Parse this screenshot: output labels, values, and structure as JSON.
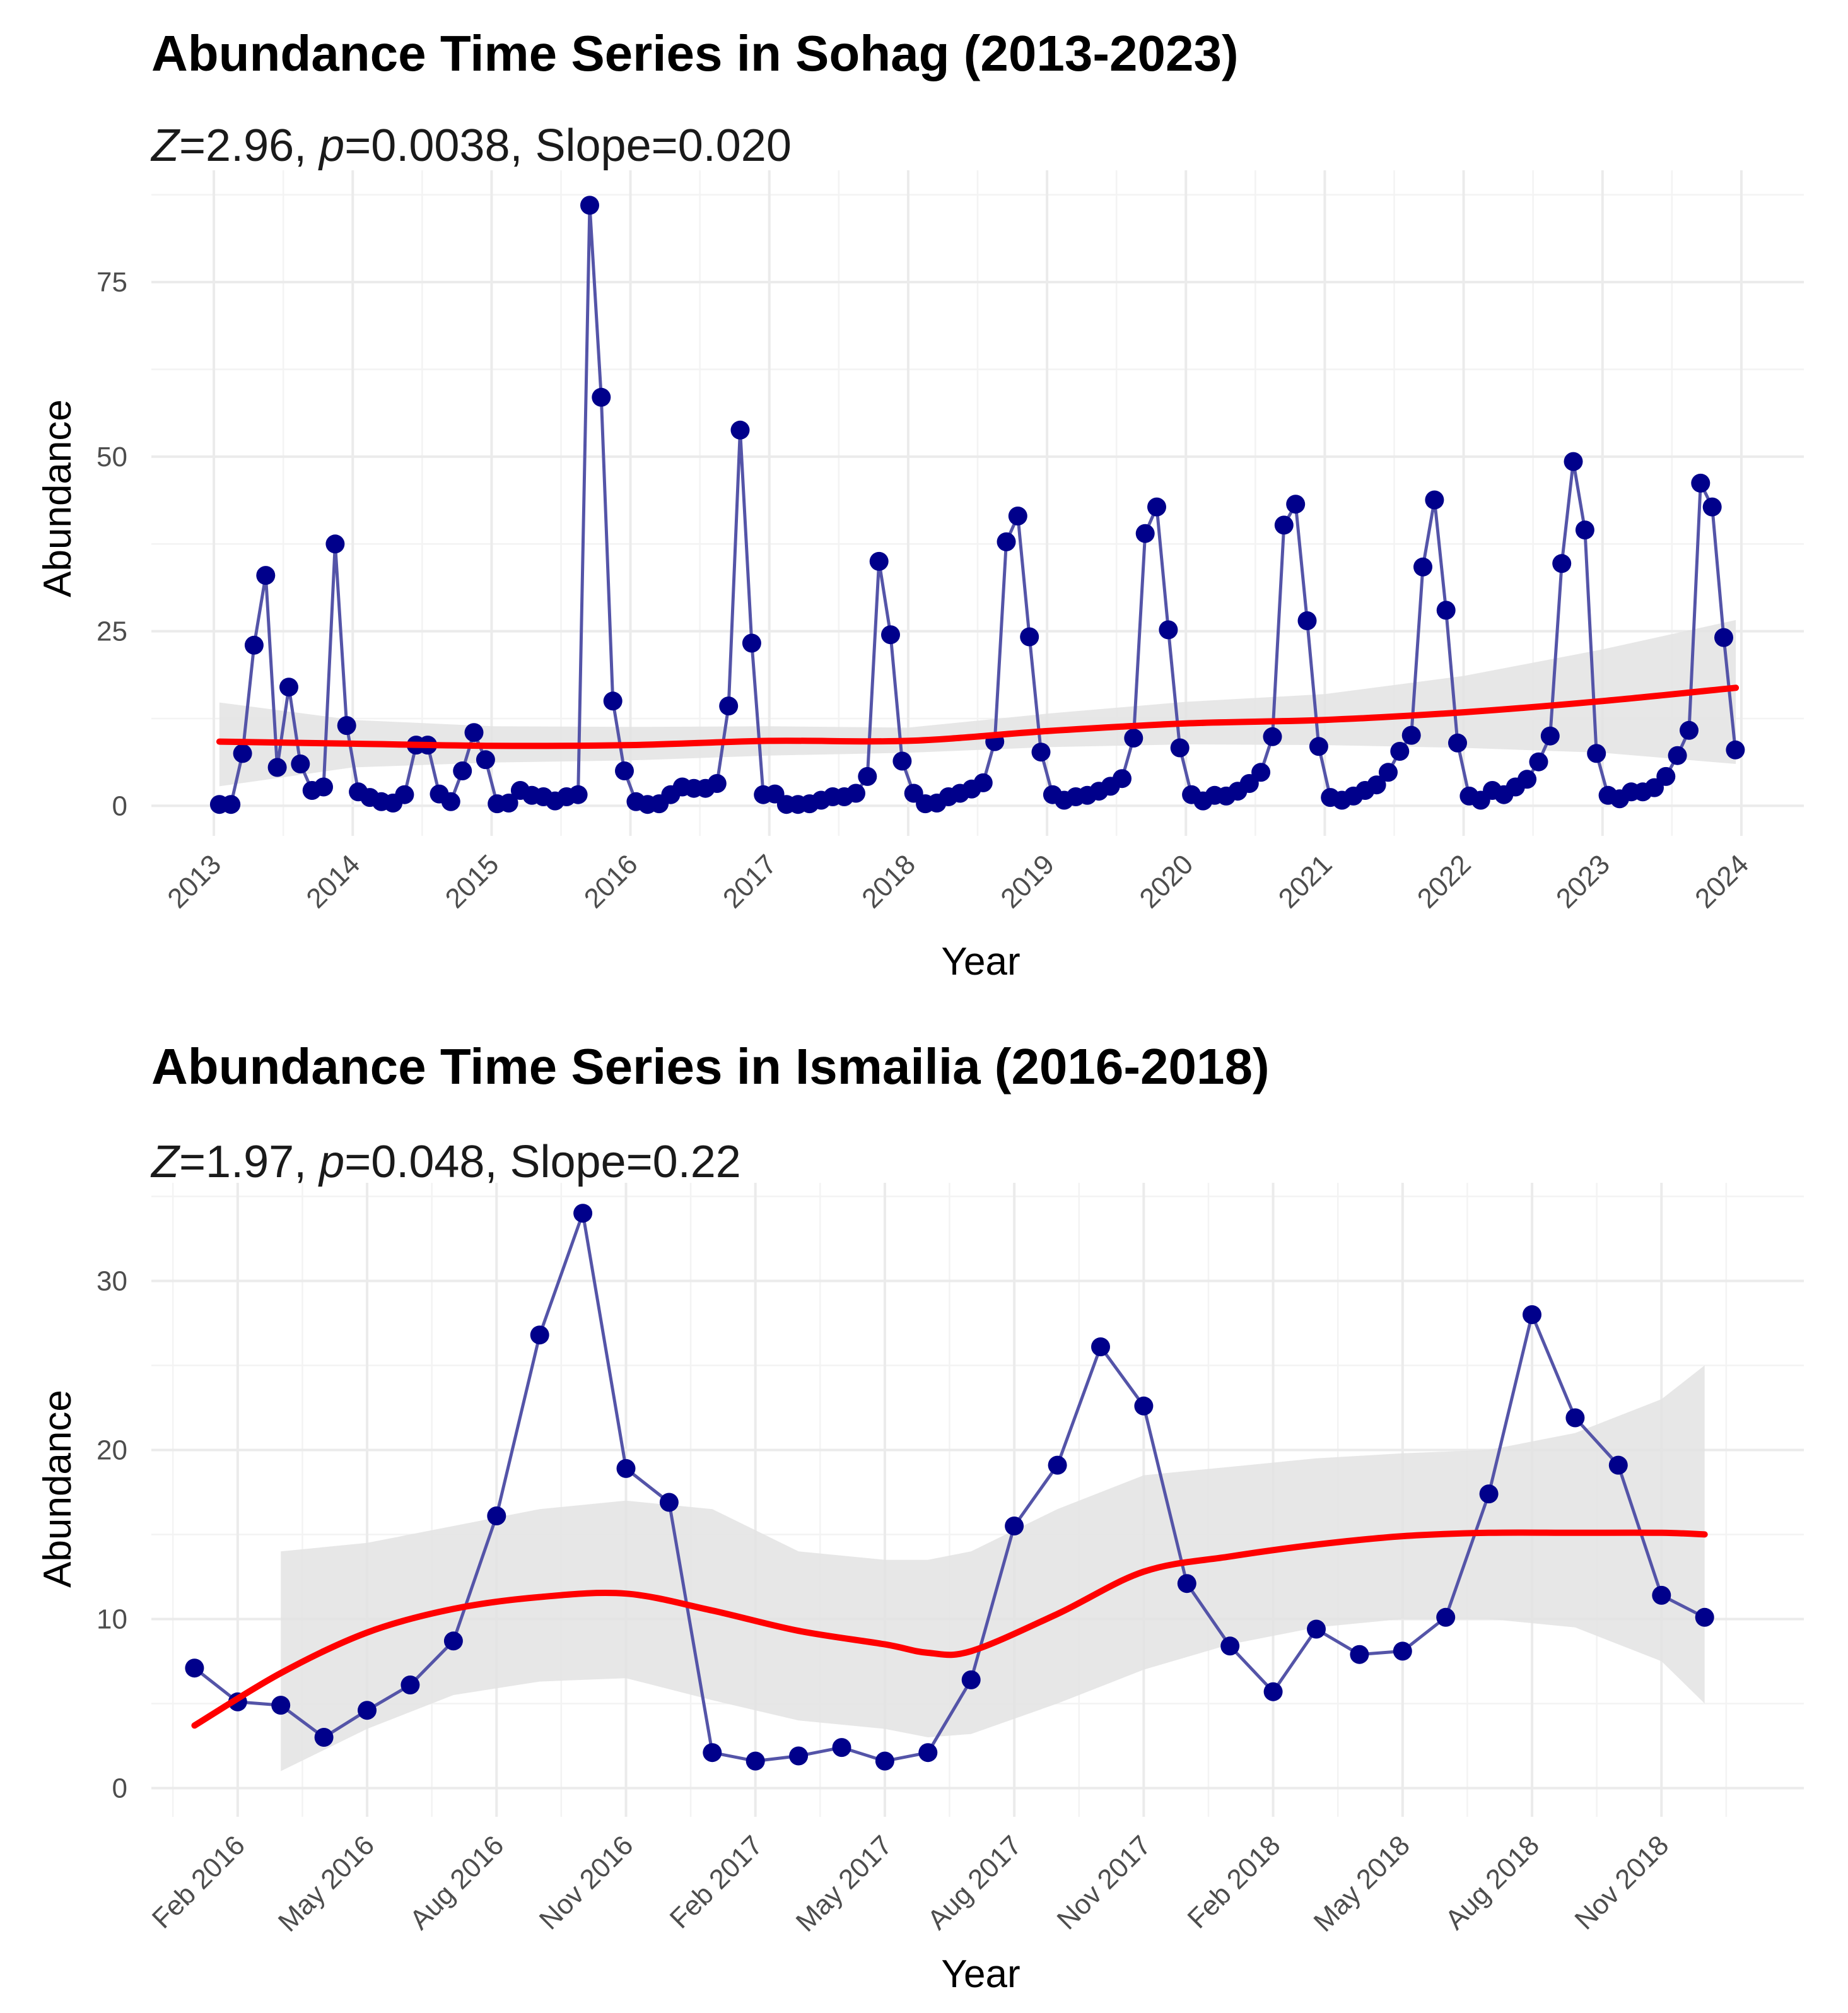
{
  "chart_data": [
    {
      "type": "line",
      "title": "Abundance Time Series in Sohag (2013-2023)",
      "subtitle": {
        "z_label": "Z",
        "z_value": "=2.96, ",
        "p_label": "p",
        "p_value": "=0.0038, Slope=0.020"
      },
      "xlabel": "Year",
      "ylabel": "Abundance",
      "xlim": [
        2012.55,
        2024.45
      ],
      "ylim": [
        -4.3,
        91
      ],
      "x_ticks": [
        2013,
        2014,
        2015,
        2016,
        2017,
        2018,
        2019,
        2020,
        2021,
        2022,
        2023,
        2024
      ],
      "x_tick_labels": [
        "2013",
        "2014",
        "2015",
        "2016",
        "2017",
        "2018",
        "2019",
        "2020",
        "2021",
        "2022",
        "2023",
        "2024"
      ],
      "y_ticks": [
        0,
        25,
        50,
        75
      ],
      "y_tick_labels": [
        "0",
        "25",
        "50",
        "75"
      ],
      "x_start": 2013.04,
      "x_step": 0.0833333,
      "values": [
        0.2,
        0.2,
        7.5,
        23,
        33,
        5.5,
        17,
        6,
        2.2,
        2.7,
        37.5,
        11.5,
        2,
        1.2,
        0.6,
        0.4,
        1.6,
        8.7,
        8.7,
        1.7,
        0.6,
        5,
        10.5,
        6.6,
        0.3,
        0.4,
        2.2,
        1.5,
        1.3,
        0.7,
        1.3,
        1.6,
        86,
        58.5,
        15,
        5,
        0.6,
        0.2,
        0.3,
        1.6,
        2.7,
        2.5,
        2.5,
        3.2,
        14.3,
        53.8,
        23.3,
        1.6,
        1.7,
        0.2,
        0.2,
        0.3,
        0.8,
        1.3,
        1.3,
        1.8,
        4.2,
        35,
        24.5,
        6.4,
        1.8,
        0.3,
        0.4,
        1.3,
        1.8,
        2.4,
        3.3,
        9.2,
        37.8,
        41.5,
        24.2,
        7.7,
        1.6,
        0.8,
        1.3,
        1.5,
        2.1,
        2.8,
        3.9,
        9.7,
        39,
        42.8,
        25.2,
        8.3,
        1.6,
        0.7,
        1.5,
        1.4,
        2.1,
        3.2,
        4.8,
        9.9,
        40.2,
        43.2,
        26.5,
        8.5,
        1.2,
        0.8,
        1.4,
        2.2,
        3,
        4.8,
        7.8,
        10.1,
        34.2,
        43.8,
        28,
        9,
        1.4,
        0.8,
        2.2,
        1.6,
        2.7,
        3.8,
        6.3,
        10,
        34.7,
        49.3,
        39.5,
        7.5,
        1.5,
        1,
        2,
        2,
        2.6,
        4.2,
        7.2,
        10.8,
        46.2,
        42.8,
        24.1,
        8
      ],
      "trend": {
        "x": [
          2013.04,
          2014,
          2015,
          2016,
          2017,
          2018,
          2019,
          2020,
          2021,
          2022,
          2023,
          2023.96
        ],
        "y": [
          9.2,
          8.9,
          8.6,
          8.7,
          9.3,
          9.3,
          10.7,
          11.8,
          12.3,
          13.4,
          15,
          16.9
        ],
        "ci_low": [
          2.8,
          5.5,
          6.2,
          6.5,
          7.2,
          7.6,
          8.4,
          8.8,
          8.7,
          8.3,
          7.6,
          6.0
        ],
        "ci_high": [
          14.8,
          12.3,
          11.4,
          11.3,
          11.4,
          11.2,
          13.2,
          14.9,
          16,
          18.6,
          22.4,
          26.6
        ]
      },
      "colors": {
        "points": "#00008B",
        "line": "#5454A8",
        "trend": "#FF0000",
        "ribbon": "#E3E3E3"
      }
    },
    {
      "type": "line",
      "title": "Abundance Time Series in Ismailia (2016-2018)",
      "subtitle": {
        "z_label": "Z",
        "z_value": "=1.97, ",
        "p_label": "p",
        "p_value": "=0.048, Slope=0.22"
      },
      "xlabel": "Year",
      "ylabel": "Abundance",
      "xlim": [
        -2,
        36.3
      ],
      "ylim": [
        -1.7,
        35.8
      ],
      "x_ticks": [
        0,
        3,
        6,
        9,
        12,
        15,
        18,
        21,
        24,
        27,
        30,
        33
      ],
      "x_tick_labels": [
        "Feb 2016",
        "May 2016",
        "Aug 2016",
        "Nov 2016",
        "Feb 2017",
        "May 2017",
        "Aug 2017",
        "Nov 2017",
        "Feb 2018",
        "May 2018",
        "Aug 2018",
        "Nov 2018"
      ],
      "y_ticks": [
        0,
        10,
        20,
        30
      ],
      "y_tick_labels": [
        "0",
        "10",
        "20",
        "30"
      ],
      "x_start": -1,
      "x_step": 1,
      "values": [
        7.1,
        5.1,
        4.9,
        3.0,
        4.6,
        6.1,
        8.7,
        16.1,
        26.8,
        34.0,
        18.9,
        16.9,
        2.1,
        1.6,
        1.9,
        2.4,
        1.6,
        2.1,
        6.4,
        15.5,
        19.1,
        26.1,
        22.6,
        12.1,
        8.4,
        5.7,
        9.4,
        7.9,
        8.1,
        10.1,
        17.4,
        28.0,
        21.9,
        19.1,
        11.4,
        10.1
      ],
      "trend": {
        "x": [
          -1,
          1,
          3,
          5,
          7,
          9,
          11,
          13,
          15,
          16,
          17,
          19,
          21,
          23,
          25,
          27,
          29,
          31,
          33,
          34
        ],
        "y": [
          3.7,
          6.8,
          9.2,
          10.6,
          11.3,
          11.5,
          10.5,
          9.3,
          8.5,
          8.0,
          8.1,
          10.3,
          12.8,
          13.7,
          14.4,
          14.9,
          15.1,
          15.1,
          15.1,
          15.0
        ],
        "ci_low": [
          null,
          1.0,
          3.5,
          5.5,
          6.3,
          6.5,
          5.2,
          4.0,
          3.5,
          3.0,
          3.2,
          5.0,
          7.0,
          8.5,
          9.5,
          10.0,
          10.0,
          9.5,
          7.5,
          5.0
        ],
        "ci_high": [
          null,
          14.0,
          14.5,
          15.5,
          16.5,
          17.0,
          16.5,
          14.0,
          13.5,
          13.5,
          14.0,
          16.5,
          18.5,
          19.0,
          19.5,
          19.8,
          20.0,
          21.0,
          23.0,
          25.0
        ]
      },
      "colors": {
        "points": "#00008B",
        "line": "#5454A8",
        "trend": "#FF0000",
        "ribbon": "#E3E3E3"
      }
    }
  ]
}
